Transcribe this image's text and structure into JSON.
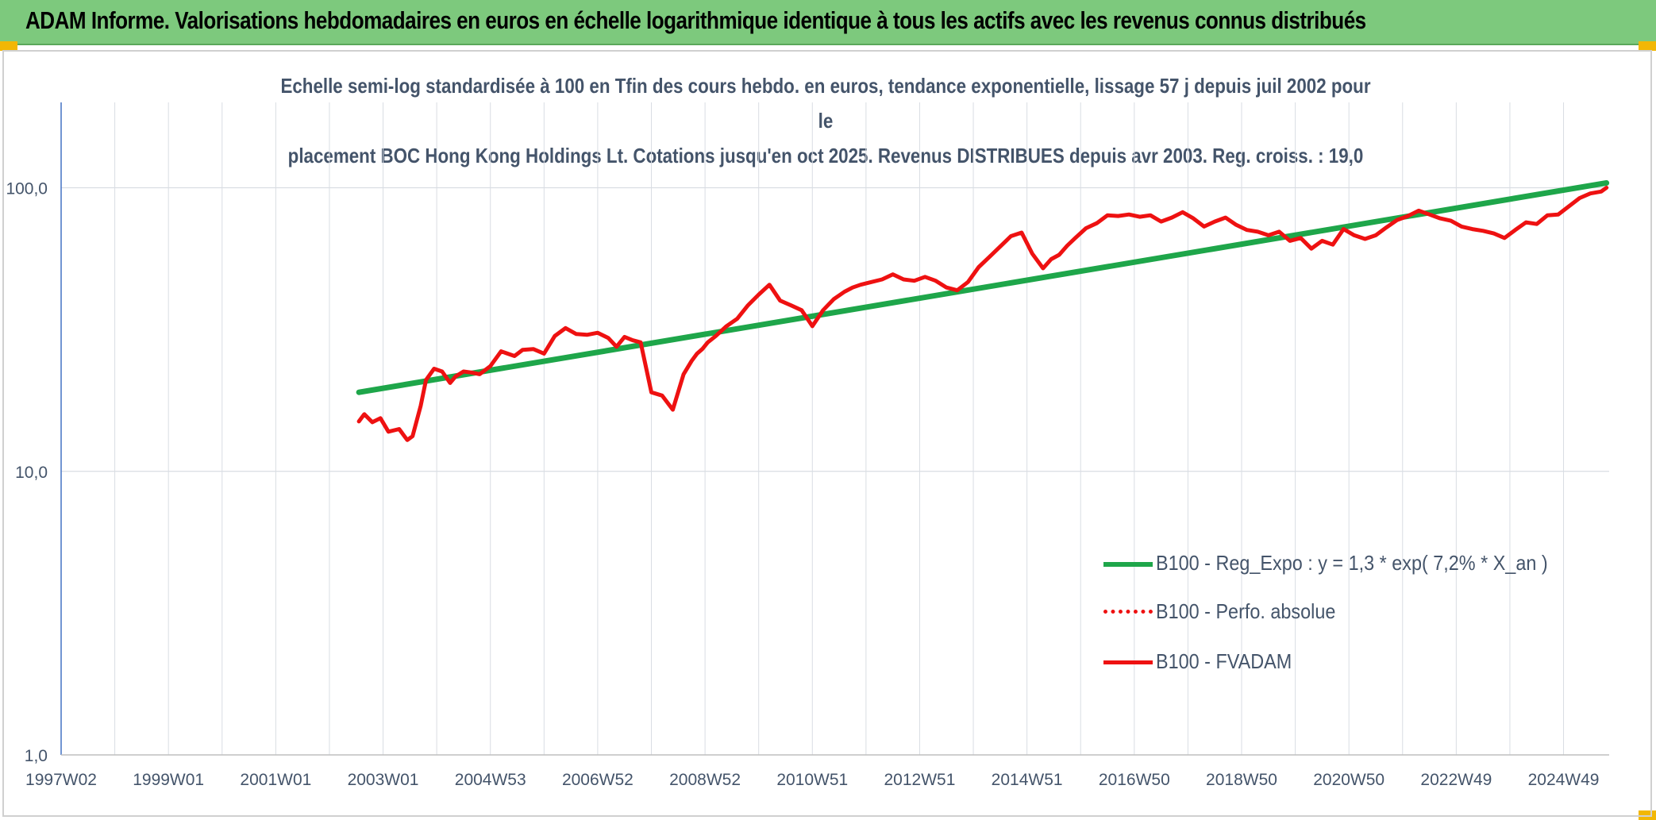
{
  "banner_title": "ADAM Informe. Valorisations hebdomadaires en euros en échelle logarithmique identique à tous les actifs avec les revenus connus distribués",
  "colors": {
    "banner": "#7dc97d",
    "trend": "#1ea64a",
    "fvadam": "#ee1111",
    "perfo": "#ee1111",
    "axis": "#4472c4",
    "grid": "#d9dde3"
  },
  "chart_data": {
    "type": "line",
    "title_line1": "Echelle semi-log standardisée à 100 en Tfin des cours hebdo. en euros, tendance exponentielle, lissage 57 j depuis juil 2002 pour le",
    "title_line2": "placement BOC Hong Kong Holdings Lt. Cotations jusqu'en oct 2025. Revenus DISTRIBUES depuis avr 2003. Reg. croiss. : 19,0",
    "y_scale": "log",
    "ylim": [
      1,
      100
    ],
    "y_ticks": [
      "1,0",
      "10,0",
      "100,0"
    ],
    "x_ticks": [
      "1997W02",
      "1999W01",
      "2001W01",
      "2003W01",
      "2004W53",
      "2006W52",
      "2008W52",
      "2010W51",
      "2012W51",
      "2014W51",
      "2016W50",
      "2018W50",
      "2020W50",
      "2022W49",
      "2024W49"
    ],
    "xlim": [
      1997.0,
      2025.85
    ],
    "legend_position": "bottom-right",
    "series": [
      {
        "name": "B100 - Reg_Expo : y = 1,3 * exp( 7,2% *  X_an )",
        "style": "solid-thick",
        "x": [
          2002.55,
          2025.8
        ],
        "values": [
          19.0,
          104.0
        ]
      },
      {
        "name": "B100 - Perfo. absolue",
        "style": "dotted",
        "x": [],
        "values": []
      },
      {
        "name": "B100 - FVADAM",
        "style": "solid",
        "x": [
          2002.55,
          2002.65,
          2002.8,
          2002.95,
          2003.1,
          2003.3,
          2003.45,
          2003.55,
          2003.7,
          2003.8,
          2003.95,
          2004.1,
          2004.25,
          2004.35,
          2004.5,
          2004.65,
          2004.8,
          2005.0,
          2005.2,
          2005.45,
          2005.6,
          2005.8,
          2006.0,
          2006.2,
          2006.4,
          2006.6,
          2006.8,
          2007.0,
          2007.2,
          2007.35,
          2007.5,
          2007.65,
          2007.8,
          2008.0,
          2008.2,
          2008.4,
          2008.6,
          2008.75,
          2008.85,
          2008.95,
          2009.05,
          2009.2,
          2009.4,
          2009.6,
          2009.8,
          2010.0,
          2010.2,
          2010.4,
          2010.6,
          2010.8,
          2011.0,
          2011.2,
          2011.4,
          2011.6,
          2011.75,
          2011.9,
          2012.1,
          2012.3,
          2012.5,
          2012.7,
          2012.9,
          2013.1,
          2013.3,
          2013.5,
          2013.7,
          2013.9,
          2014.1,
          2014.3,
          2014.5,
          2014.7,
          2014.9,
          2015.1,
          2015.3,
          2015.45,
          2015.6,
          2015.75,
          2015.9,
          2016.1,
          2016.3,
          2016.5,
          2016.7,
          2016.9,
          2017.1,
          2017.3,
          2017.5,
          2017.7,
          2017.9,
          2018.1,
          2018.3,
          2018.5,
          2018.7,
          2018.9,
          2019.1,
          2019.3,
          2019.5,
          2019.7,
          2019.9,
          2020.1,
          2020.3,
          2020.5,
          2020.7,
          2020.9,
          2021.1,
          2021.3,
          2021.5,
          2021.7,
          2021.9,
          2022.1,
          2022.3,
          2022.5,
          2022.7,
          2022.9,
          2023.1,
          2023.3,
          2023.5,
          2023.7,
          2023.9,
          2024.1,
          2024.3,
          2024.5,
          2024.7,
          2024.9,
          2025.1,
          2025.3,
          2025.5,
          2025.7,
          2025.8
        ],
        "values": [
          15.0,
          15.9,
          14.9,
          15.4,
          13.8,
          14.1,
          12.9,
          13.3,
          17.0,
          21.0,
          23.0,
          22.5,
          20.5,
          21.6,
          22.5,
          22.3,
          22.0,
          23.5,
          26.5,
          25.5,
          26.8,
          27.0,
          26.0,
          30.0,
          32.0,
          30.5,
          30.3,
          30.8,
          29.5,
          27.5,
          29.8,
          29.0,
          28.5,
          19.0,
          18.5,
          16.5,
          22.0,
          24.5,
          26.0,
          27.0,
          28.5,
          30.0,
          32.5,
          34.5,
          38.5,
          42.0,
          45.5,
          40.0,
          38.5,
          37.0,
          32.5,
          37.0,
          40.5,
          43.0,
          44.5,
          45.5,
          46.5,
          47.5,
          49.5,
          47.5,
          47.0,
          48.5,
          47.0,
          44.5,
          43.5,
          46.5,
          52.5,
          57.0,
          62.0,
          67.5,
          69.5,
          58.5,
          52.0,
          56.0,
          58.0,
          62.5,
          66.5,
          72.0,
          75.0,
          80.0,
          79.5,
          80.5,
          79.0,
          80.0,
          76.0,
          78.5,
          82.0,
          78.0,
          73.0,
          76.0,
          78.5,
          74.0,
          71.0,
          70.0,
          68.0,
          70.0,
          65.0,
          66.5,
          61.0,
          65.0,
          63.0,
          71.5,
          68.0,
          66.0,
          68.0,
          72.5,
          77.0,
          79.5,
          83.0,
          80.5,
          78.0,
          76.5,
          73.0,
          71.5,
          70.5,
          69.0,
          66.5,
          71.0,
          75.5,
          74.5,
          80.0,
          80.5,
          86.0,
          92.0,
          95.5,
          97.0,
          100.0
        ]
      }
    ]
  }
}
